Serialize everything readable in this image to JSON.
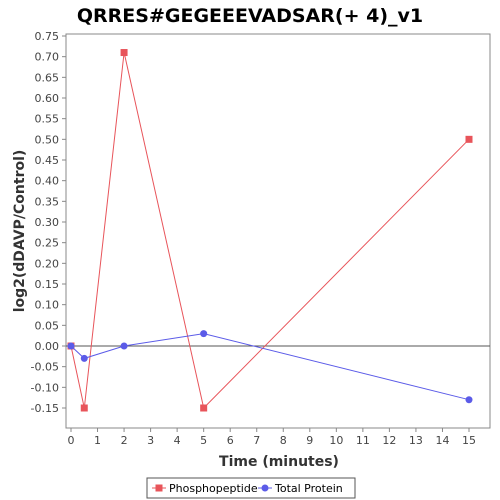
{
  "chart_data": {
    "type": "line",
    "title": "QRRES#GEGEEEVADSAR(+ 4)_v1",
    "xlabel": "Time (minutes)",
    "ylabel": "log2(dDAVP/Control)",
    "xlim": [
      0,
      15.5
    ],
    "ylim": [
      -0.19,
      0.75
    ],
    "xticks": [
      0,
      1,
      2,
      3,
      4,
      5,
      6,
      7,
      8,
      9,
      10,
      11,
      12,
      13,
      14,
      15
    ],
    "yticks": [
      -0.15,
      -0.1,
      -0.05,
      0.0,
      0.05,
      0.1,
      0.15,
      0.2,
      0.25,
      0.3,
      0.35,
      0.4,
      0.45,
      0.5,
      0.55,
      0.6,
      0.65,
      0.7,
      0.75
    ],
    "zero_line": true,
    "grid": false,
    "legend_position": "bottom",
    "series": [
      {
        "name": "Phosphopeptide",
        "color": "#e8545a",
        "marker": "square",
        "x": [
          0,
          0.5,
          2,
          5,
          15
        ],
        "y": [
          0.0,
          -0.15,
          0.71,
          -0.15,
          0.5
        ]
      },
      {
        "name": "Total Protein",
        "color": "#5b5be8",
        "marker": "circle",
        "x": [
          0,
          0.5,
          2,
          5,
          15
        ],
        "y": [
          0.0,
          -0.03,
          0.0,
          0.03,
          -0.13
        ]
      }
    ]
  }
}
